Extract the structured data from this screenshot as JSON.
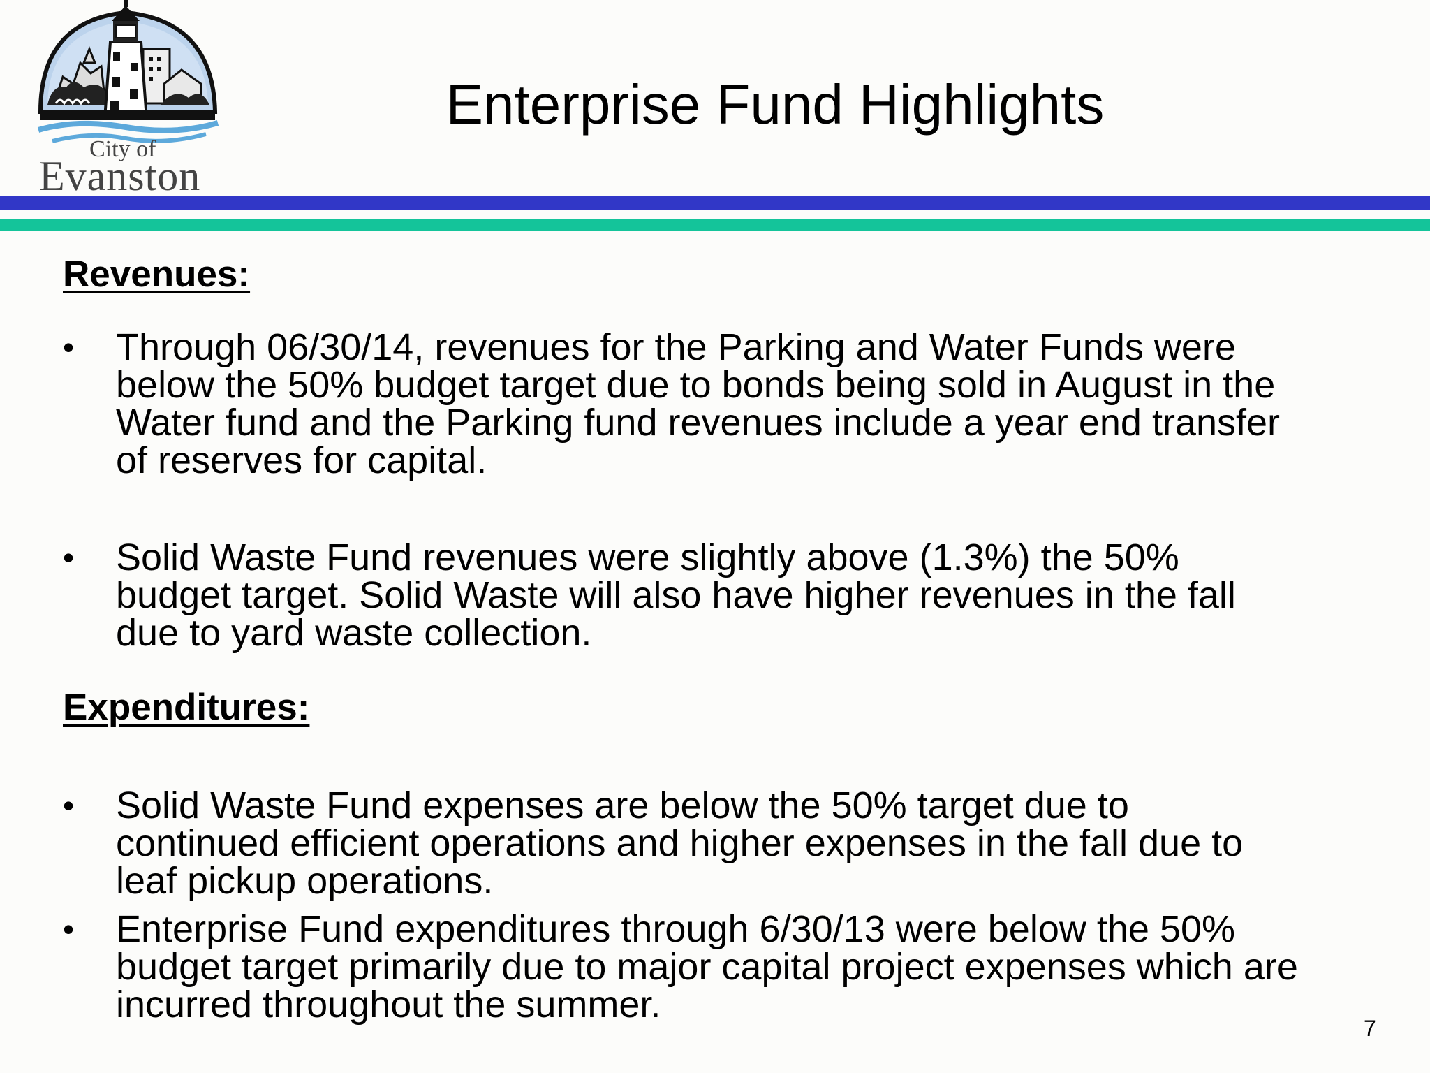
{
  "logo": {
    "line1": "City of",
    "line2": "Evanston"
  },
  "slide": {
    "title": "Enterprise Fund Highlights",
    "page_number": "7"
  },
  "sections": {
    "revenues": {
      "heading": "Revenues:",
      "bullets": [
        {
          "lines": [
            "Through 06/30/14, revenues for the Parking and Water Funds were",
            "below the 50% budget target due to bonds being sold in August in the",
            "Water fund and the Parking fund revenues include a year end transfer",
            "of reserves for capital."
          ]
        },
        {
          "lines": [
            "Solid Waste Fund revenues were slightly above (1.3%) the 50%",
            "budget target.  Solid Waste will also have higher revenues in the fall",
            "due to yard waste collection."
          ]
        }
      ]
    },
    "expenditures": {
      "heading": "Expenditures:",
      "bullets": [
        {
          "lines": [
            "Solid Waste Fund expenses are below the 50% target due to",
            "continued efficient operations and higher expenses in the fall due to",
            "leaf pickup operations."
          ]
        },
        {
          "lines": [
            "Enterprise Fund expenditures through 6/30/13 were below the 50%",
            "budget target primarily due to major capital project expenses which are",
            "incurred throughout the summer."
          ]
        }
      ]
    }
  },
  "bullet_symbol": "•",
  "colors": {
    "rule_blue": "#3137c7",
    "rule_teal": "#14c49a"
  }
}
